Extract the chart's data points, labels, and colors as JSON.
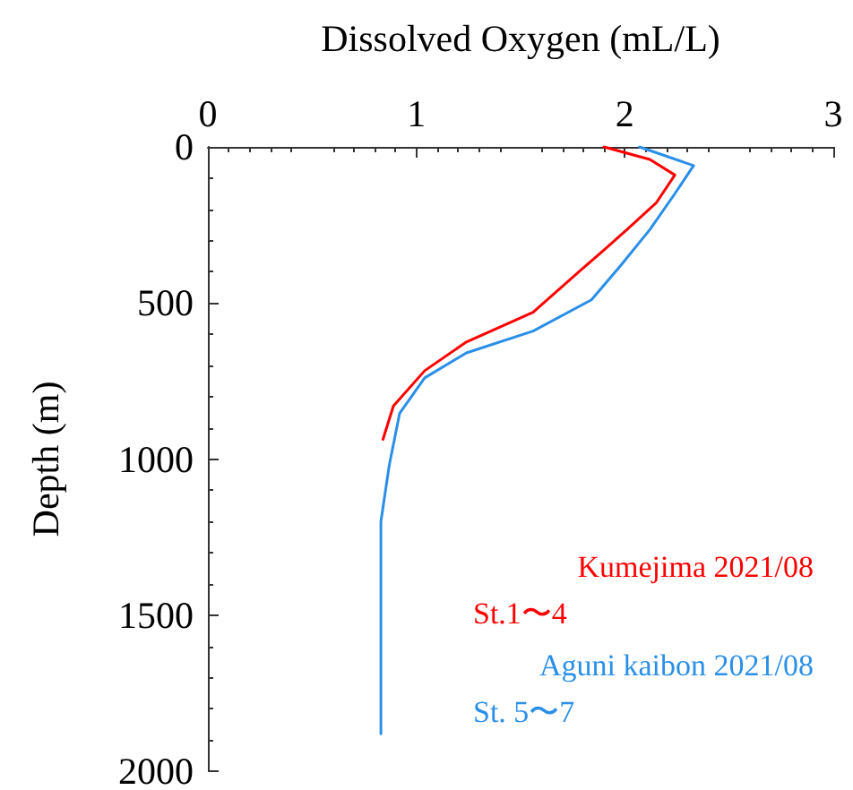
{
  "chart_data": {
    "type": "line",
    "xlabel": "Dissolved Oxygen (mL/L)",
    "ylabel": "Depth (m)",
    "xlim": [
      0,
      3
    ],
    "xticks": [
      0,
      1,
      2,
      3
    ],
    "ylim": [
      2000,
      0
    ],
    "yticks": [
      0,
      500,
      1000,
      1500,
      2000
    ],
    "grid": false,
    "legend": "bottom right",
    "marker": "none",
    "line_style": "solid",
    "series": [
      {
        "name": "Kumejima 2021/08",
        "color": "#ff0000",
        "x": [
          1.9,
          2.12,
          2.24,
          2.15,
          2.01,
          1.9,
          1.78,
          1.56,
          1.24,
          1.04,
          0.89,
          0.84
        ],
        "values": [
          0,
          40,
          90,
          180,
          265,
          330,
          400,
          530,
          625,
          717,
          830,
          937
        ]
      },
      {
        "name": "Aguni kaibon 2021/08",
        "color": "#2a8fe8",
        "x": [
          2.07,
          2.33,
          2.24,
          2.12,
          1.98,
          1.84,
          1.56,
          1.24,
          1.04,
          0.92,
          0.87,
          0.83,
          0.83,
          0.83
        ],
        "values": [
          0,
          60,
          150,
          265,
          380,
          490,
          590,
          660,
          740,
          853,
          1020,
          1200,
          1500,
          1880
        ]
      }
    ],
    "annotations": [
      "St.1〜4",
      "St. 5〜7"
    ]
  }
}
